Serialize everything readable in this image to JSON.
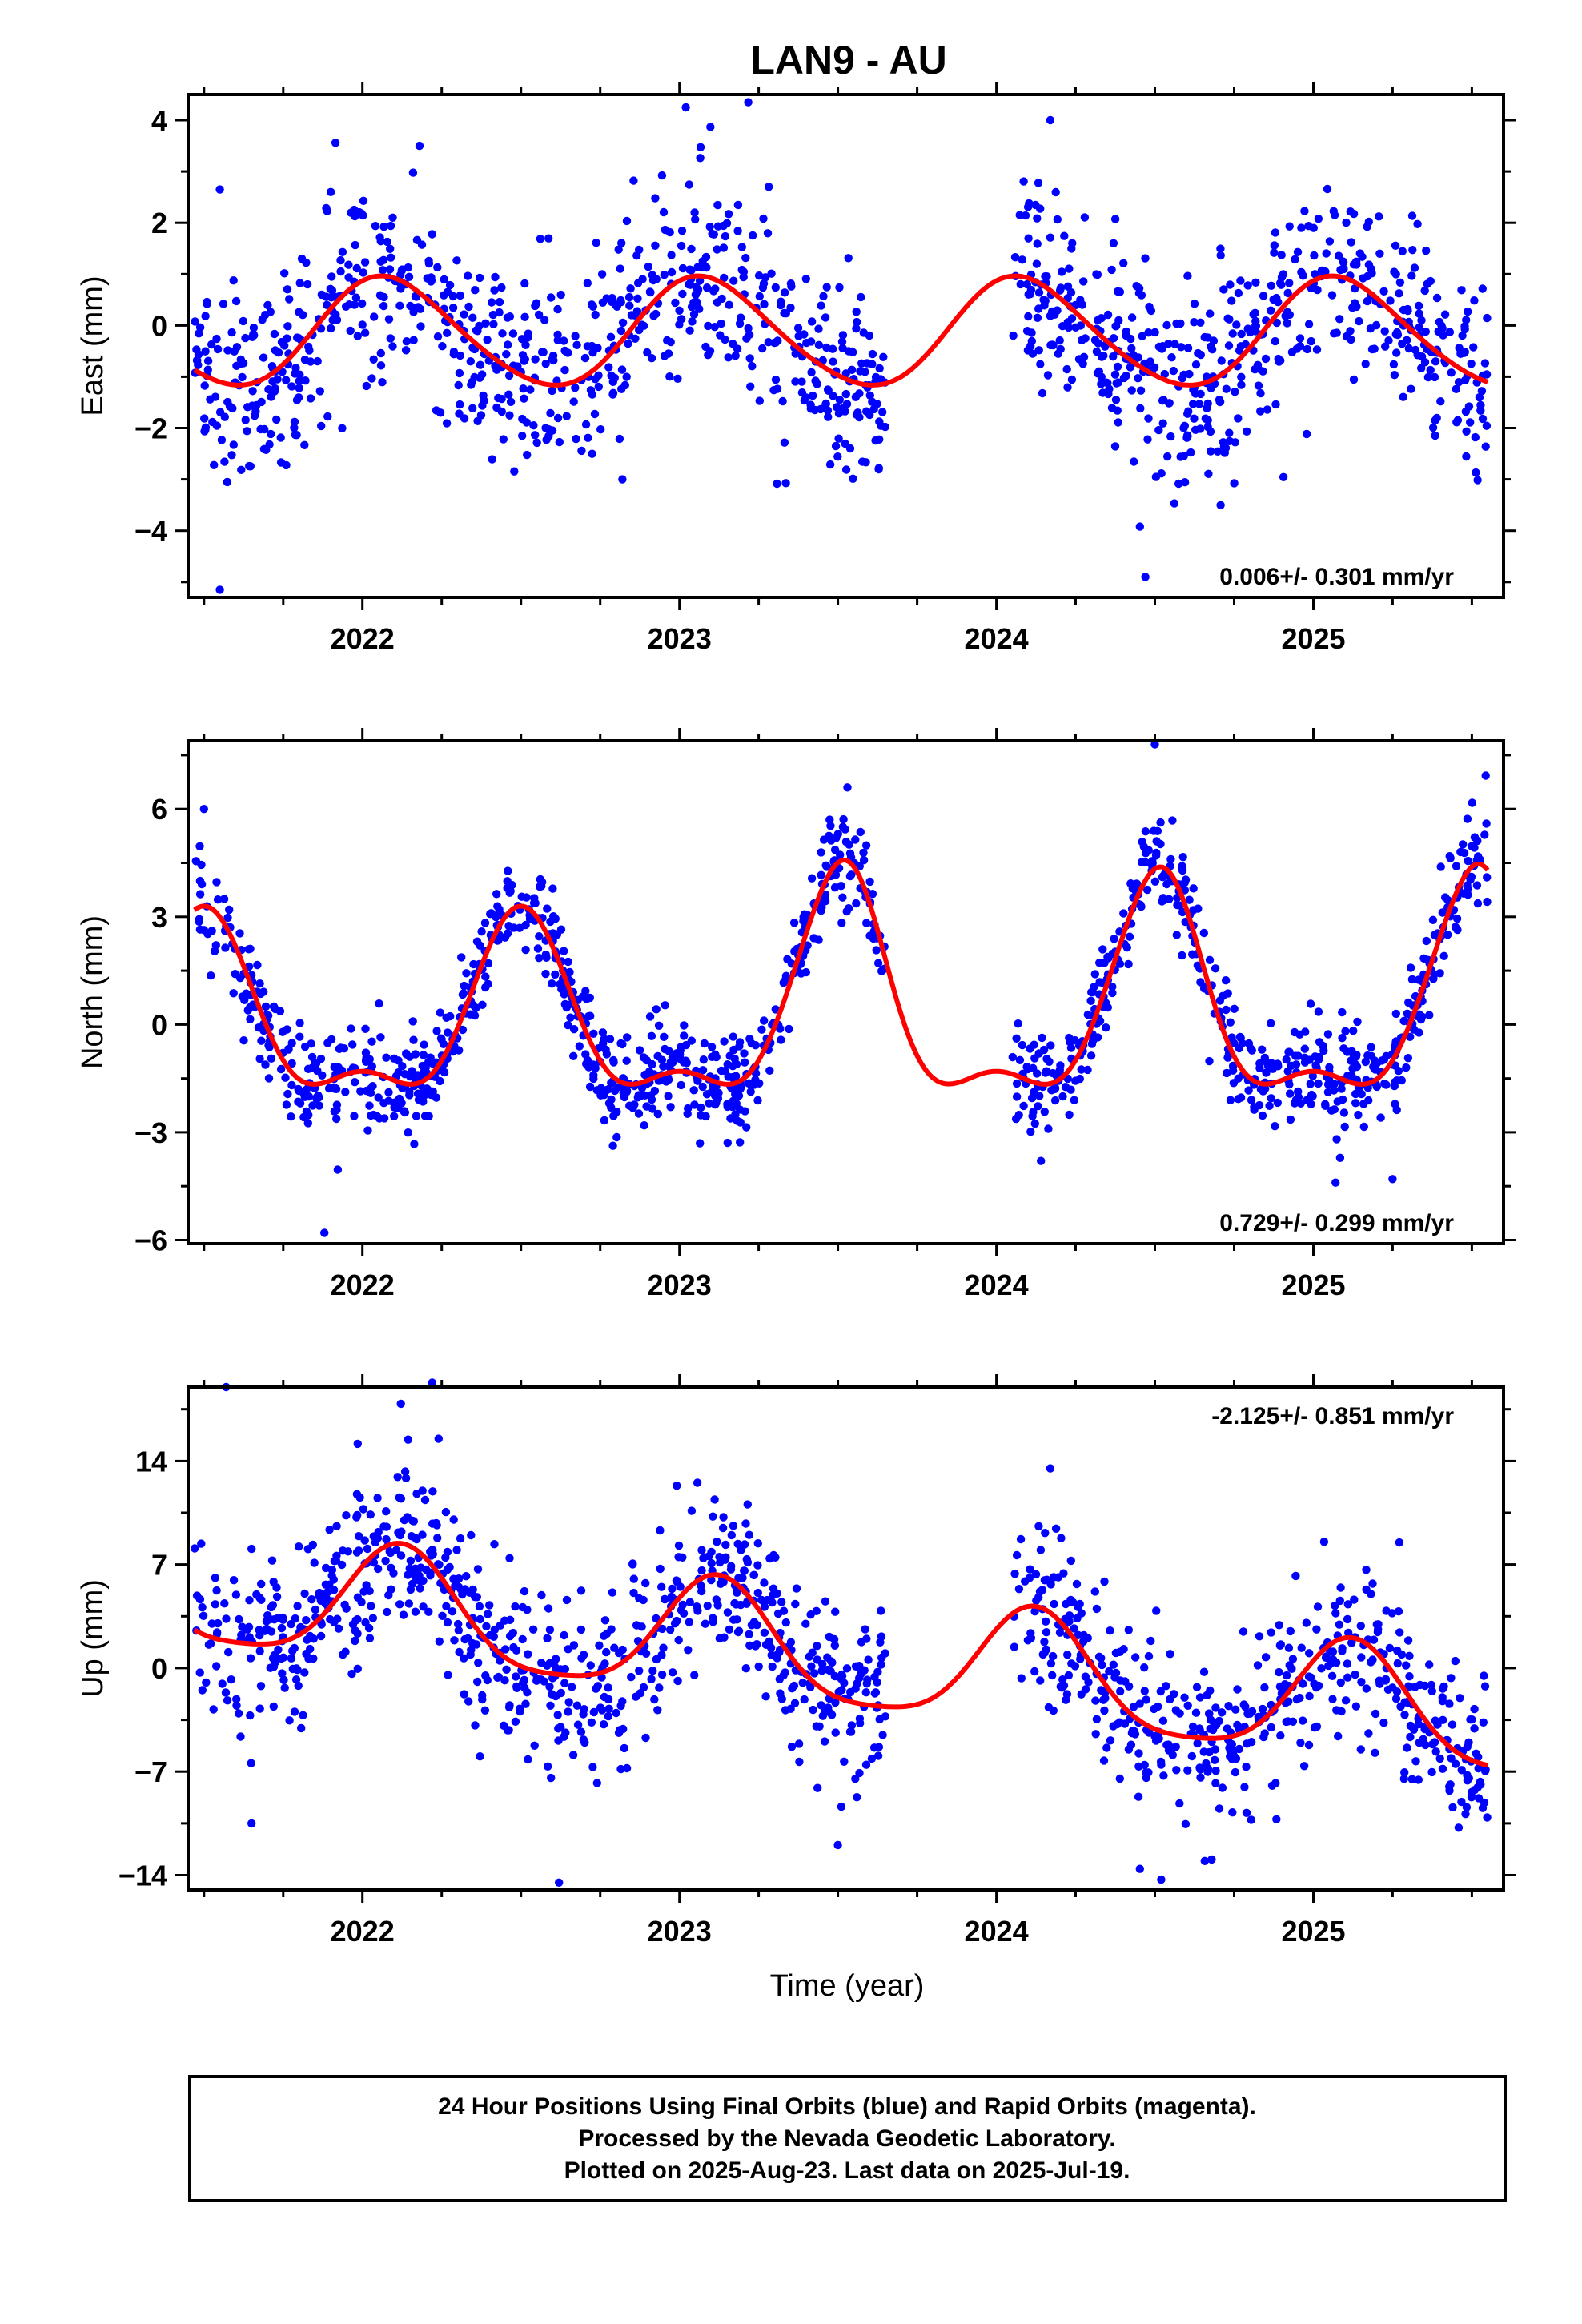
{
  "title": "LAN9 - AU",
  "xlabel": "Time (year)",
  "footer": {
    "lines": [
      "24 Hour Positions Using Final Orbits (blue) and Rapid Orbits (magenta).",
      "Processed by the Nevada Geodetic Laboratory.",
      "Plotted on 2025-Aug-23. Last data on 2025-Jul-19."
    ]
  },
  "colors": {
    "final_orbits": "#0000ff",
    "model_fit": "#ff0000",
    "axes": "#000000"
  },
  "chart_data": [
    {
      "type": "scatter",
      "component": "east",
      "ylabel": "East (mm)",
      "rate_label": "0.006+/- 0.301 mm/yr",
      "rate_position": "bottom-right",
      "xlim": [
        2021.45,
        2025.6
      ],
      "ylim": [
        -5.3,
        4.5
      ],
      "xticks": [
        2022,
        2023,
        2024,
        2025
      ],
      "xtick_labels": [
        "2022",
        "2023",
        "2024",
        "2025"
      ],
      "yticks": [
        -4,
        -2,
        0,
        2,
        4
      ],
      "ytick_labels": [
        "−4",
        "−2",
        "0",
        "2",
        "4"
      ],
      "grid": false,
      "data_gap": [
        2023.65,
        2024.05
      ],
      "series": [
        {
          "kind": "points",
          "x_range": [
            2021.47,
            2025.55
          ],
          "count": 1280,
          "scatter_sd": 0.95,
          "outliers": [
            [
              2021.55,
              2.65
            ],
            [
              2021.55,
              -5.15
            ],
            [
              2022.18,
              3.5
            ],
            [
              2023.02,
              4.25
            ],
            [
              2024.17,
              4.0
            ],
            [
              2024.47,
              -4.9
            ],
            [
              2021.9,
              2.6
            ],
            [
              2022.82,
              -3.0
            ]
          ]
        },
        {
          "kind": "model",
          "mean": -0.15,
          "annual_amp": 1.05,
          "annual_peak": 2022.08,
          "semiannual_amp": 0.1,
          "semiannual_peak": 2022.0,
          "extra": []
        }
      ]
    },
    {
      "type": "scatter",
      "component": "north",
      "ylabel": "North (mm)",
      "rate_label": "0.729+/- 0.299 mm/yr",
      "rate_position": "bottom-right",
      "xlim": [
        2021.45,
        2025.6
      ],
      "ylim": [
        -6.1,
        7.9
      ],
      "xticks": [
        2022,
        2023,
        2024,
        2025
      ],
      "xtick_labels": [
        "2022",
        "2023",
        "2024",
        "2025"
      ],
      "yticks": [
        -6,
        -3,
        0,
        3,
        6
      ],
      "ytick_labels": [
        "−6",
        "−3",
        "0",
        "3",
        "6"
      ],
      "grid": false,
      "data_gap": [
        2023.65,
        2024.05
      ],
      "series": [
        {
          "kind": "points",
          "x_range": [
            2021.47,
            2025.55
          ],
          "count": 1280,
          "scatter_sd": 0.7,
          "outliers": [
            [
              2021.5,
              6.0
            ],
            [
              2024.5,
              7.8
            ],
            [
              2021.88,
              -5.8
            ],
            [
              2023.53,
              6.6
            ],
            [
              2025.07,
              -4.4
            ],
            [
              2025.25,
              -4.3
            ]
          ]
        },
        {
          "kind": "model",
          "mean": 0.0,
          "annual_amp": 2.3,
          "annual_peak": 2022.5,
          "semiannual_amp": 1.0,
          "semiannual_peak": 2022.5,
          "extra": [
            {
              "center": 2023.55,
              "width": 0.13,
              "amp": 1.4
            },
            {
              "center": 2024.55,
              "width": 0.13,
              "amp": 1.2
            },
            {
              "center": 2025.55,
              "width": 0.12,
              "amp": 1.3
            }
          ]
        }
      ]
    },
    {
      "type": "scatter",
      "component": "up",
      "ylabel": "Up (mm)",
      "rate_label": "-2.125+/- 0.851 mm/yr",
      "rate_position": "top-right",
      "xlim": [
        2021.45,
        2025.6
      ],
      "ylim": [
        -15,
        19
      ],
      "xticks": [
        2022,
        2023,
        2024,
        2025
      ],
      "xtick_labels": [
        "2022",
        "2023",
        "2024",
        "2025"
      ],
      "yticks": [
        -14,
        -7,
        0,
        7,
        14
      ],
      "ytick_labels": [
        "−14",
        "−7",
        "0",
        "7",
        "14"
      ],
      "grid": false,
      "data_gap": [
        2023.65,
        2024.05
      ],
      "series": [
        {
          "kind": "points",
          "x_range": [
            2021.47,
            2025.55
          ],
          "count": 1280,
          "scatter_sd": 2.9,
          "outliers": [
            [
              2021.57,
              19.0
            ],
            [
              2022.22,
              19.3
            ],
            [
              2022.24,
              15.5
            ],
            [
              2024.17,
              13.5
            ],
            [
              2022.62,
              -14.5
            ],
            [
              2024.52,
              -14.3
            ],
            [
              2021.65,
              -10.5
            ]
          ]
        },
        {
          "kind": "model",
          "mean": 0.8,
          "annual_amp": 3.9,
          "annual_peak": 2022.12,
          "semiannual_amp": 0.8,
          "semiannual_peak": 2022.12,
          "trend": -2.125,
          "trend_ref": 2023.5,
          "extra": []
        }
      ]
    }
  ]
}
